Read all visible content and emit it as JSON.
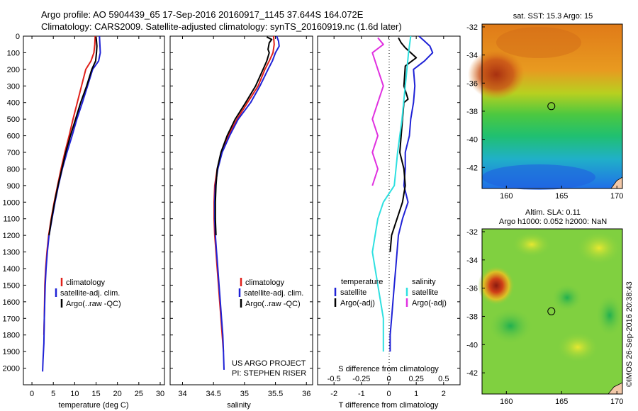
{
  "header": {
    "line1": "Argo profile: AO 5904439_65 17-Sep-2016 20160917_1145 37.644S 164.072E",
    "line2": "Climatology: CARS2009. Satellite-adjusted climatology: synTS_20160919.nc (1.6d later)"
  },
  "colors": {
    "climatology": "#e0201a",
    "satellite": "#1f22d6",
    "argo": "#000000",
    "salinity_satellite": "#2ee0e0",
    "salinity_argo": "#e030e0"
  },
  "chart_data": [
    {
      "type": "line",
      "panel": "temperature",
      "xlabel": "temperature (deg C)",
      "ylabel": "",
      "xlim": [
        -2,
        31
      ],
      "ylim": [
        2100,
        0
      ],
      "xticks": [
        "0",
        "5",
        "10",
        "15",
        "20",
        "25",
        "30"
      ],
      "yticks": [
        "0",
        "100",
        "200",
        "300",
        "400",
        "500",
        "600",
        "700",
        "800",
        "900",
        "1000",
        "1100",
        "1200",
        "1300",
        "1400",
        "1500",
        "1600",
        "1700",
        "1800",
        "1900",
        "2000"
      ],
      "legend": [
        "climatology",
        "satellite-adj. clim.",
        "Argo(..raw -QC)"
      ],
      "series": [
        {
          "name": "climatology",
          "color": "#e0201a",
          "points": [
            [
              14.8,
              0
            ],
            [
              14.7,
              50
            ],
            [
              14.5,
              100
            ],
            [
              13.8,
              150
            ],
            [
              12.6,
              200
            ],
            [
              11.6,
              300
            ],
            [
              10.6,
              400
            ],
            [
              9.6,
              500
            ],
            [
              8.7,
              600
            ],
            [
              7.7,
              700
            ],
            [
              6.8,
              800
            ],
            [
              6.0,
              900
            ],
            [
              5.2,
              1000
            ],
            [
              4.5,
              1100
            ],
            [
              3.9,
              1200
            ],
            [
              3.5,
              1300
            ],
            [
              3.2,
              1400
            ],
            [
              3.0,
              1500
            ],
            [
              2.9,
              1700
            ],
            [
              2.8,
              1800
            ]
          ]
        },
        {
          "name": "satellite-adj. clim.",
          "color": "#1f22d6",
          "points": [
            [
              15.8,
              0
            ],
            [
              15.9,
              50
            ],
            [
              16.0,
              100
            ],
            [
              15.6,
              150
            ],
            [
              14.2,
              200
            ],
            [
              13.0,
              300
            ],
            [
              11.8,
              400
            ],
            [
              10.5,
              500
            ],
            [
              9.4,
              600
            ],
            [
              8.2,
              700
            ],
            [
              7.1,
              800
            ],
            [
              6.2,
              900
            ],
            [
              5.4,
              1000
            ],
            [
              4.7,
              1100
            ],
            [
              4.0,
              1200
            ],
            [
              3.6,
              1300
            ],
            [
              3.3,
              1400
            ],
            [
              3.1,
              1500
            ],
            [
              2.9,
              1700
            ],
            [
              2.8,
              1850
            ],
            [
              2.6,
              1950
            ],
            [
              2.5,
              2020
            ]
          ]
        },
        {
          "name": "Argo(..raw -QC)",
          "color": "#000000",
          "points": [
            [
              15.0,
              5
            ],
            [
              15.1,
              30
            ],
            [
              15.2,
              60
            ],
            [
              15.1,
              100
            ],
            [
              14.9,
              150
            ],
            [
              14.0,
              200
            ],
            [
              12.8,
              300
            ],
            [
              11.4,
              400
            ],
            [
              10.2,
              500
            ],
            [
              9.0,
              600
            ],
            [
              7.9,
              700
            ],
            [
              7.0,
              800
            ],
            [
              6.1,
              900
            ],
            [
              5.3,
              1000
            ],
            [
              4.6,
              1100
            ],
            [
              4.0,
              1200
            ]
          ]
        }
      ]
    },
    {
      "type": "line",
      "panel": "salinity",
      "xlabel": "salinity",
      "xlim": [
        33.8,
        36.1
      ],
      "ylim": [
        2100,
        0
      ],
      "xticks": [
        "34",
        "34.5",
        "35",
        "35.5",
        "36"
      ],
      "legend": [
        "climatology",
        "satellite-adj. clim.",
        "Argo(..raw -QC)"
      ],
      "series": [
        {
          "name": "climatology",
          "color": "#e0201a",
          "points": [
            [
              35.47,
              0
            ],
            [
              35.48,
              50
            ],
            [
              35.46,
              100
            ],
            [
              35.4,
              150
            ],
            [
              35.33,
              200
            ],
            [
              35.22,
              300
            ],
            [
              35.05,
              400
            ],
            [
              34.88,
              500
            ],
            [
              34.74,
              600
            ],
            [
              34.63,
              700
            ],
            [
              34.56,
              800
            ],
            [
              34.52,
              900
            ],
            [
              34.51,
              1000
            ],
            [
              34.51,
              1100
            ],
            [
              34.52,
              1200
            ],
            [
              34.54,
              1300
            ],
            [
              34.56,
              1400
            ],
            [
              34.58,
              1500
            ],
            [
              34.6,
              1600
            ],
            [
              34.62,
              1700
            ],
            [
              34.64,
              1800
            ],
            [
              34.66,
              1900
            ]
          ]
        },
        {
          "name": "satellite-adj. clim.",
          "color": "#1f22d6",
          "points": [
            [
              35.52,
              0
            ],
            [
              35.55,
              30
            ],
            [
              35.56,
              60
            ],
            [
              35.5,
              100
            ],
            [
              35.45,
              150
            ],
            [
              35.38,
              200
            ],
            [
              35.25,
              300
            ],
            [
              35.1,
              400
            ],
            [
              34.9,
              500
            ],
            [
              34.76,
              600
            ],
            [
              34.64,
              700
            ],
            [
              34.57,
              800
            ],
            [
              34.53,
              900
            ],
            [
              34.52,
              1000
            ],
            [
              34.52,
              1100
            ],
            [
              34.53,
              1200
            ],
            [
              34.55,
              1300
            ],
            [
              34.57,
              1400
            ],
            [
              34.59,
              1500
            ],
            [
              34.61,
              1600
            ],
            [
              34.63,
              1700
            ],
            [
              34.65,
              1800
            ],
            [
              34.66,
              1900
            ],
            [
              34.67,
              2010
            ]
          ]
        },
        {
          "name": "Argo(..raw -QC)",
          "color": "#000000",
          "points": [
            [
              35.36,
              5
            ],
            [
              35.44,
              20
            ],
            [
              35.4,
              40
            ],
            [
              35.38,
              80
            ],
            [
              35.4,
              100
            ],
            [
              35.36,
              150
            ],
            [
              35.3,
              200
            ],
            [
              35.18,
              300
            ],
            [
              35.02,
              400
            ],
            [
              34.85,
              500
            ],
            [
              34.72,
              600
            ],
            [
              34.62,
              700
            ],
            [
              34.56,
              800
            ],
            [
              34.54,
              900
            ],
            [
              34.53,
              1000
            ],
            [
              34.53,
              1100
            ],
            [
              34.54,
              1200
            ]
          ]
        }
      ]
    },
    {
      "type": "line",
      "panel": "difference",
      "xlabel": "T difference from climatology",
      "xlabel_top": "S difference from climatology",
      "xlim": [
        -2.6,
        2.6
      ],
      "ylim": [
        2100,
        0
      ],
      "xticks": [
        "-2",
        "-1",
        "0",
        "1",
        "2"
      ],
      "xticks_top": [
        "-0.5",
        "-0.25",
        "0",
        "0.25",
        "0.5"
      ],
      "legend_title_left": "temperature",
      "legend_title_right": "salinity",
      "legend": [
        "satellite",
        "Argo(-adj)",
        "satellite",
        "Argo(-adj)"
      ],
      "series": [
        {
          "name": "T satellite",
          "color": "#1f22d6",
          "points": [
            [
              1.1,
              0
            ],
            [
              1.3,
              30
            ],
            [
              1.5,
              60
            ],
            [
              1.6,
              100
            ],
            [
              1.3,
              150
            ],
            [
              0.9,
              200
            ],
            [
              0.95,
              300
            ],
            [
              0.9,
              400
            ],
            [
              0.8,
              500
            ],
            [
              0.75,
              600
            ],
            [
              0.6,
              700
            ],
            [
              0.6,
              800
            ],
            [
              0.55,
              900
            ],
            [
              0.7,
              1000
            ],
            [
              0.5,
              1100
            ],
            [
              0.35,
              1200
            ],
            [
              0.3,
              1300
            ],
            [
              0.25,
              1400
            ],
            [
              0.2,
              1500
            ],
            [
              0.15,
              1600
            ],
            [
              0.1,
              1700
            ],
            [
              0.05,
              1800
            ],
            [
              0.05,
              1900
            ]
          ]
        },
        {
          "name": "T Argo(-adj)",
          "color": "#000000",
          "points": [
            [
              0.35,
              10
            ],
            [
              0.45,
              40
            ],
            [
              0.6,
              70
            ],
            [
              1.0,
              130
            ],
            [
              0.6,
              180
            ],
            [
              0.55,
              300
            ],
            [
              0.7,
              380
            ],
            [
              0.55,
              400
            ],
            [
              0.5,
              500
            ],
            [
              0.45,
              600
            ],
            [
              0.4,
              700
            ],
            [
              0.55,
              800
            ],
            [
              0.6,
              900
            ],
            [
              0.5,
              1000
            ],
            [
              0.3,
              1100
            ],
            [
              0.1,
              1200
            ],
            [
              0.05,
              1300
            ]
          ]
        },
        {
          "name": "S satellite",
          "color": "#2ee0e0",
          "points": [
            [
              0.2,
              0
            ],
            [
              0.18,
              100
            ],
            [
              0.15,
              300
            ],
            [
              0.12,
              500
            ],
            [
              0.08,
              700
            ],
            [
              0.05,
              900
            ],
            [
              -0.05,
              1000
            ],
            [
              -0.1,
              1100
            ],
            [
              -0.15,
              1300
            ],
            [
              -0.1,
              1500
            ],
            [
              -0.05,
              1700
            ],
            [
              -0.05,
              1900
            ]
          ]
        },
        {
          "name": "S Argo(-adj)",
          "color": "#e030e0",
          "points": [
            [
              -0.1,
              10
            ],
            [
              -0.05,
              50
            ],
            [
              -0.15,
              100
            ],
            [
              -0.1,
              200
            ],
            [
              -0.05,
              300
            ],
            [
              -0.1,
              400
            ],
            [
              -0.15,
              500
            ],
            [
              -0.1,
              600
            ],
            [
              -0.15,
              700
            ],
            [
              -0.1,
              800
            ],
            [
              -0.15,
              900
            ]
          ]
        }
      ]
    },
    {
      "type": "heatmap",
      "panel": "sst_map",
      "title": "sat. SST: 15.3 Argo: 15",
      "xlim": [
        157.8,
        170.5
      ],
      "ylim": [
        -43.5,
        -31.8
      ],
      "xticks": [
        "160",
        "165",
        "170"
      ],
      "yticks": [
        "-32",
        "-34",
        "-36",
        "-38",
        "-40",
        "-42"
      ],
      "marker": [
        164.07,
        -37.64
      ]
    },
    {
      "type": "heatmap",
      "panel": "sla_map",
      "title_line1": "Altim. SLA: 0.11",
      "title_line2": "Argo h1000: 0.052 h2000: NaN",
      "xlim": [
        157.8,
        170.5
      ],
      "ylim": [
        -43.5,
        -31.8
      ],
      "xticks": [
        "160",
        "165",
        "170"
      ],
      "yticks": [
        "-32",
        "-34",
        "-36",
        "-38",
        "-40",
        "-42"
      ],
      "marker": [
        164.07,
        -37.64
      ]
    }
  ],
  "notes": {
    "project_line1": "US ARGO PROJECT",
    "project_line2": "PI: STEPHEN RISER",
    "credit": "©IMOS 26-Sep-2016 20:38:43"
  }
}
